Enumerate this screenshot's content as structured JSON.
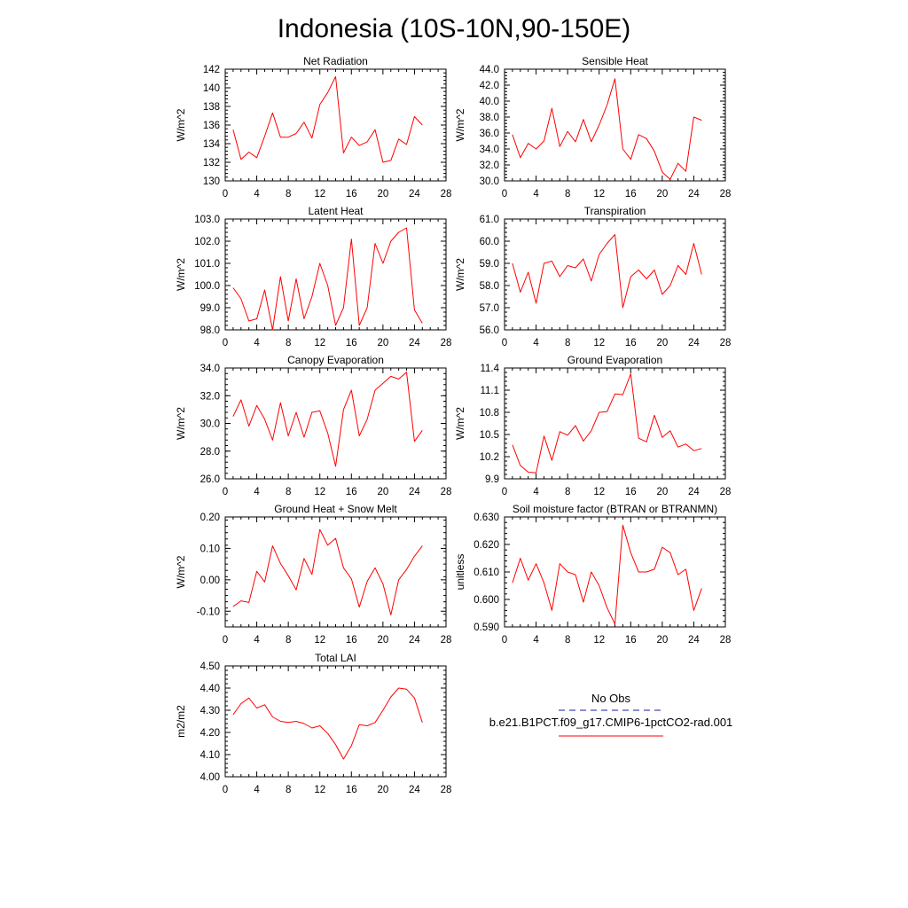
{
  "page": {
    "title": "Indonesia (10S-10N,90-150E)"
  },
  "legend": {
    "entries": [
      {
        "label": "No Obs",
        "color": "#1a1aa6",
        "style": "dashed"
      },
      {
        "label": "b.e21.B1PCT.f09_g17.CMIP6-1pctCO2-rad.001",
        "color": "#ff0000",
        "style": "solid"
      }
    ]
  },
  "chart_data": [
    {
      "type": "line",
      "title": "Net Radiation",
      "xlabel": "",
      "ylabel": "W/m^2",
      "xlim": [
        0,
        28
      ],
      "ylim": [
        130,
        142
      ],
      "xticks": [
        0,
        4,
        8,
        12,
        16,
        20,
        24,
        28
      ],
      "yticks": [
        "130",
        "132",
        "134",
        "136",
        "138",
        "140",
        "142"
      ],
      "x": [
        1,
        2,
        3,
        4,
        5,
        6,
        7,
        8,
        9,
        10,
        11,
        12,
        13,
        14,
        15,
        16,
        17,
        18,
        19,
        20,
        21,
        22,
        23,
        24,
        25
      ],
      "series": [
        {
          "color": "#ff0000",
          "values": [
            135.5,
            132.3,
            133.1,
            132.5,
            134.8,
            137.3,
            134.7,
            134.7,
            135.1,
            136.3,
            134.6,
            138.2,
            139.5,
            141.2,
            133.0,
            134.7,
            133.8,
            134.2,
            135.5,
            132.0,
            132.2,
            134.5,
            133.9,
            136.9,
            136.0
          ]
        }
      ]
    },
    {
      "type": "line",
      "title": "Sensible Heat",
      "xlabel": "",
      "ylabel": "W/m^2",
      "xlim": [
        0,
        28
      ],
      "ylim": [
        30,
        44
      ],
      "xticks": [
        0,
        4,
        8,
        12,
        16,
        20,
        24,
        28
      ],
      "yticks": [
        "30.0",
        "32.0",
        "34.0",
        "36.0",
        "38.0",
        "40.0",
        "42.0",
        "44.0"
      ],
      "x": [
        1,
        2,
        3,
        4,
        5,
        6,
        7,
        8,
        9,
        10,
        11,
        12,
        13,
        14,
        15,
        16,
        17,
        18,
        19,
        20,
        21,
        22,
        23,
        24,
        25
      ],
      "series": [
        {
          "color": "#ff0000",
          "values": [
            35.8,
            32.9,
            34.7,
            34.0,
            35.0,
            39.1,
            34.3,
            36.2,
            34.9,
            37.7,
            34.9,
            37.0,
            39.5,
            42.8,
            34.0,
            32.7,
            35.8,
            35.3,
            33.7,
            31.1,
            30.2,
            32.2,
            31.2,
            38.0,
            37.6
          ]
        }
      ]
    },
    {
      "type": "line",
      "title": "Latent Heat",
      "xlabel": "",
      "ylabel": "W/m^2",
      "xlim": [
        0,
        28
      ],
      "ylim": [
        98,
        103
      ],
      "xticks": [
        0,
        4,
        8,
        12,
        16,
        20,
        24,
        28
      ],
      "yticks": [
        "98.0",
        "99.0",
        "100.0",
        "101.0",
        "102.0",
        "103.0"
      ],
      "x": [
        1,
        2,
        3,
        4,
        5,
        6,
        7,
        8,
        9,
        10,
        11,
        12,
        13,
        14,
        15,
        16,
        17,
        18,
        19,
        20,
        21,
        22,
        23,
        24,
        25
      ],
      "series": [
        {
          "color": "#ff0000",
          "values": [
            99.9,
            99.4,
            98.4,
            98.5,
            99.8,
            98.0,
            100.4,
            98.4,
            100.3,
            98.5,
            99.5,
            101.0,
            100.0,
            98.2,
            99.0,
            102.1,
            98.2,
            99.0,
            101.9,
            101.0,
            102.0,
            102.4,
            102.6,
            98.9,
            98.3
          ]
        }
      ]
    },
    {
      "type": "line",
      "title": "Transpiration",
      "xlabel": "",
      "ylabel": "W/m^2",
      "xlim": [
        0,
        28
      ],
      "ylim": [
        56,
        61
      ],
      "xticks": [
        0,
        4,
        8,
        12,
        16,
        20,
        24,
        28
      ],
      "yticks": [
        "56.0",
        "57.0",
        "58.0",
        "59.0",
        "60.0",
        "61.0"
      ],
      "x": [
        1,
        2,
        3,
        4,
        5,
        6,
        7,
        8,
        9,
        10,
        11,
        12,
        13,
        14,
        15,
        16,
        17,
        18,
        19,
        20,
        21,
        22,
        23,
        24,
        25
      ],
      "series": [
        {
          "color": "#ff0000",
          "values": [
            59.0,
            57.7,
            58.6,
            57.2,
            59.0,
            59.1,
            58.4,
            58.9,
            58.8,
            59.2,
            58.2,
            59.4,
            59.9,
            60.3,
            57.0,
            58.4,
            58.7,
            58.3,
            58.7,
            57.6,
            58.0,
            58.9,
            58.5,
            59.9,
            58.5
          ]
        }
      ]
    },
    {
      "type": "line",
      "title": "Canopy Evaporation",
      "xlabel": "",
      "ylabel": "W/m^2",
      "xlim": [
        0,
        28
      ],
      "ylim": [
        26,
        34
      ],
      "xticks": [
        0,
        4,
        8,
        12,
        16,
        20,
        24,
        28
      ],
      "yticks": [
        "26.0",
        "28.0",
        "30.0",
        "32.0",
        "34.0"
      ],
      "x": [
        1,
        2,
        3,
        4,
        5,
        6,
        7,
        8,
        9,
        10,
        11,
        12,
        13,
        14,
        15,
        16,
        17,
        18,
        19,
        20,
        21,
        22,
        23,
        24,
        25
      ],
      "series": [
        {
          "color": "#ff0000",
          "values": [
            30.5,
            31.7,
            29.8,
            31.3,
            30.3,
            28.8,
            31.5,
            29.1,
            30.8,
            29.0,
            30.8,
            30.9,
            29.3,
            26.9,
            31.0,
            32.4,
            29.1,
            30.3,
            32.4,
            32.9,
            33.4,
            33.2,
            33.7,
            28.7,
            29.5
          ]
        }
      ]
    },
    {
      "type": "line",
      "title": "Ground Evaporation",
      "xlabel": "",
      "ylabel": "W/m^2",
      "xlim": [
        0,
        28
      ],
      "ylim": [
        9.9,
        11.4
      ],
      "xticks": [
        0,
        4,
        8,
        12,
        16,
        20,
        24,
        28
      ],
      "yticks": [
        "9.9",
        "10.2",
        "10.5",
        "10.8",
        "11.1",
        "11.4"
      ],
      "x": [
        1,
        2,
        3,
        4,
        5,
        6,
        7,
        8,
        9,
        10,
        11,
        12,
        13,
        14,
        15,
        16,
        17,
        18,
        19,
        20,
        21,
        22,
        23,
        24,
        25
      ],
      "series": [
        {
          "color": "#ff0000",
          "values": [
            10.36,
            10.08,
            9.99,
            9.98,
            10.48,
            10.15,
            10.54,
            10.49,
            10.62,
            10.41,
            10.55,
            10.8,
            10.81,
            11.05,
            11.04,
            11.32,
            10.45,
            10.4,
            10.76,
            10.46,
            10.55,
            10.33,
            10.37,
            10.28,
            10.31
          ]
        }
      ]
    },
    {
      "type": "line",
      "title": "Ground Heat + Snow Melt",
      "xlabel": "",
      "ylabel": "W/m^2",
      "xlim": [
        0,
        28
      ],
      "ylim": [
        -0.15,
        0.2
      ],
      "xticks": [
        0,
        4,
        8,
        12,
        16,
        20,
        24,
        28
      ],
      "yticks": [
        "-0.10",
        "0.00",
        "0.10",
        "0.20"
      ],
      "ytick_values": [
        -0.1,
        0.0,
        0.1,
        0.2
      ],
      "x": [
        1,
        2,
        3,
        4,
        5,
        6,
        7,
        8,
        9,
        10,
        11,
        12,
        13,
        14,
        15,
        16,
        17,
        18,
        19,
        20,
        21,
        22,
        23,
        24,
        25
      ],
      "series": [
        {
          "color": "#ff0000",
          "values": [
            -0.085,
            -0.067,
            -0.072,
            0.027,
            -0.007,
            0.108,
            0.052,
            0.013,
            -0.032,
            0.068,
            0.017,
            0.16,
            0.11,
            0.132,
            0.038,
            0.003,
            -0.087,
            -0.005,
            0.038,
            -0.013,
            -0.112,
            0.0,
            0.033,
            0.075,
            0.108
          ]
        }
      ]
    },
    {
      "type": "line",
      "title": "Soil moisture factor (BTRAN or BTRANMN)",
      "xlabel": "",
      "ylabel": "unitless",
      "xlim": [
        0,
        28
      ],
      "ylim": [
        0.59,
        0.63
      ],
      "xticks": [
        0,
        4,
        8,
        12,
        16,
        20,
        24,
        28
      ],
      "yticks": [
        "0.590",
        "0.600",
        "0.610",
        "0.620",
        "0.630"
      ],
      "x": [
        1,
        2,
        3,
        4,
        5,
        6,
        7,
        8,
        9,
        10,
        11,
        12,
        13,
        14,
        15,
        16,
        17,
        18,
        19,
        20,
        21,
        22,
        23,
        24,
        25
      ],
      "series": [
        {
          "color": "#ff0000",
          "values": [
            0.606,
            0.615,
            0.607,
            0.613,
            0.606,
            0.596,
            0.613,
            0.61,
            0.609,
            0.599,
            0.61,
            0.605,
            0.597,
            0.591,
            0.627,
            0.617,
            0.61,
            0.61,
            0.611,
            0.619,
            0.617,
            0.609,
            0.611,
            0.596,
            0.604
          ]
        }
      ]
    },
    {
      "type": "line",
      "title": "Total LAI",
      "xlabel": "",
      "ylabel": "m2/m2",
      "xlim": [
        0,
        28
      ],
      "ylim": [
        4.0,
        4.5
      ],
      "xticks": [
        0,
        4,
        8,
        12,
        16,
        20,
        24,
        28
      ],
      "yticks": [
        "4.00",
        "4.10",
        "4.20",
        "4.30",
        "4.40",
        "4.50"
      ],
      "x": [
        1,
        2,
        3,
        4,
        5,
        6,
        7,
        8,
        9,
        10,
        11,
        12,
        13,
        14,
        15,
        16,
        17,
        18,
        19,
        20,
        21,
        22,
        23,
        24,
        25
      ],
      "series": [
        {
          "color": "#ff0000",
          "values": [
            4.28,
            4.33,
            4.355,
            4.31,
            4.325,
            4.27,
            4.25,
            4.245,
            4.25,
            4.24,
            4.22,
            4.23,
            4.195,
            4.145,
            4.08,
            4.14,
            4.235,
            4.23,
            4.245,
            4.3,
            4.36,
            4.4,
            4.395,
            4.355,
            4.245
          ]
        }
      ]
    }
  ]
}
